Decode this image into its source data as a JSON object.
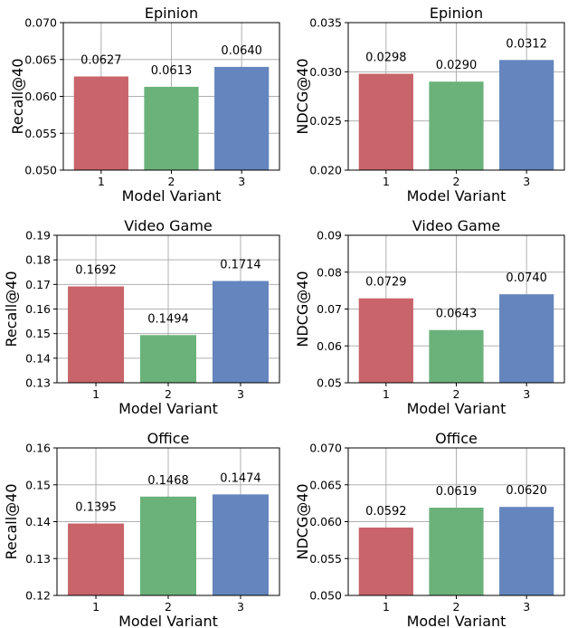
{
  "chart_data": [
    {
      "type": "bar",
      "title": "Epinion",
      "xlabel": "Model Variant",
      "ylabel": "Recall@40",
      "categories": [
        "1",
        "2",
        "3"
      ],
      "values": [
        0.0627,
        0.0613,
        0.064
      ],
      "value_labels": [
        "0.0627",
        "0.0613",
        "0.0640"
      ],
      "ylim": [
        0.05,
        0.07
      ],
      "yticks": [
        "0.050",
        "0.055",
        "0.060",
        "0.065",
        "0.070"
      ],
      "ytick_values": [
        0.05,
        0.055,
        0.06,
        0.065,
        0.07
      ],
      "colors": [
        "#c8646a",
        "#6bb27a",
        "#6485bd"
      ],
      "grid": true
    },
    {
      "type": "bar",
      "title": "Epinion",
      "xlabel": "Model Variant",
      "ylabel": "NDCG@40",
      "categories": [
        "1",
        "2",
        "3"
      ],
      "values": [
        0.0298,
        0.029,
        0.0312
      ],
      "value_labels": [
        "0.0298",
        "0.0290",
        "0.0312"
      ],
      "ylim": [
        0.02,
        0.035
      ],
      "yticks": [
        "0.020",
        "0.025",
        "0.030",
        "0.035"
      ],
      "ytick_values": [
        0.02,
        0.025,
        0.03,
        0.035
      ],
      "colors": [
        "#c8646a",
        "#6bb27a",
        "#6485bd"
      ],
      "grid": true
    },
    {
      "type": "bar",
      "title": "Video Game",
      "xlabel": "Model Variant",
      "ylabel": "Recall@40",
      "categories": [
        "1",
        "2",
        "3"
      ],
      "values": [
        0.1692,
        0.1494,
        0.1714
      ],
      "value_labels": [
        "0.1692",
        "0.1494",
        "0.1714"
      ],
      "ylim": [
        0.13,
        0.19
      ],
      "yticks": [
        "0.13",
        "0.14",
        "0.15",
        "0.16",
        "0.17",
        "0.18",
        "0.19"
      ],
      "ytick_values": [
        0.13,
        0.14,
        0.15,
        0.16,
        0.17,
        0.18,
        0.19
      ],
      "colors": [
        "#c8646a",
        "#6bb27a",
        "#6485bd"
      ],
      "grid": true
    },
    {
      "type": "bar",
      "title": "Video Game",
      "xlabel": "Model Variant",
      "ylabel": "NDCG@40",
      "categories": [
        "1",
        "2",
        "3"
      ],
      "values": [
        0.0729,
        0.0643,
        0.074
      ],
      "value_labels": [
        "0.0729",
        "0.0643",
        "0.0740"
      ],
      "ylim": [
        0.05,
        0.09
      ],
      "yticks": [
        "0.05",
        "0.06",
        "0.07",
        "0.08",
        "0.09"
      ],
      "ytick_values": [
        0.05,
        0.06,
        0.07,
        0.08,
        0.09
      ],
      "colors": [
        "#c8646a",
        "#6bb27a",
        "#6485bd"
      ],
      "grid": true
    },
    {
      "type": "bar",
      "title": "Office",
      "xlabel": "Model Variant",
      "ylabel": "Recall@40",
      "categories": [
        "1",
        "2",
        "3"
      ],
      "values": [
        0.1395,
        0.1468,
        0.1474
      ],
      "value_labels": [
        "0.1395",
        "0.1468",
        "0.1474"
      ],
      "ylim": [
        0.12,
        0.16
      ],
      "yticks": [
        "0.12",
        "0.13",
        "0.14",
        "0.15",
        "0.16"
      ],
      "ytick_values": [
        0.12,
        0.13,
        0.14,
        0.15,
        0.16
      ],
      "colors": [
        "#c8646a",
        "#6bb27a",
        "#6485bd"
      ],
      "grid": true
    },
    {
      "type": "bar",
      "title": "Office",
      "xlabel": "Model Variant",
      "ylabel": "NDCG@40",
      "categories": [
        "1",
        "2",
        "3"
      ],
      "values": [
        0.0592,
        0.0619,
        0.062
      ],
      "value_labels": [
        "0.0592",
        "0.0619",
        "0.0620"
      ],
      "ylim": [
        0.05,
        0.07
      ],
      "yticks": [
        "0.050",
        "0.055",
        "0.060",
        "0.065",
        "0.070"
      ],
      "ytick_values": [
        0.05,
        0.055,
        0.06,
        0.065,
        0.07
      ],
      "colors": [
        "#c8646a",
        "#6bb27a",
        "#6485bd"
      ],
      "grid": true
    }
  ]
}
